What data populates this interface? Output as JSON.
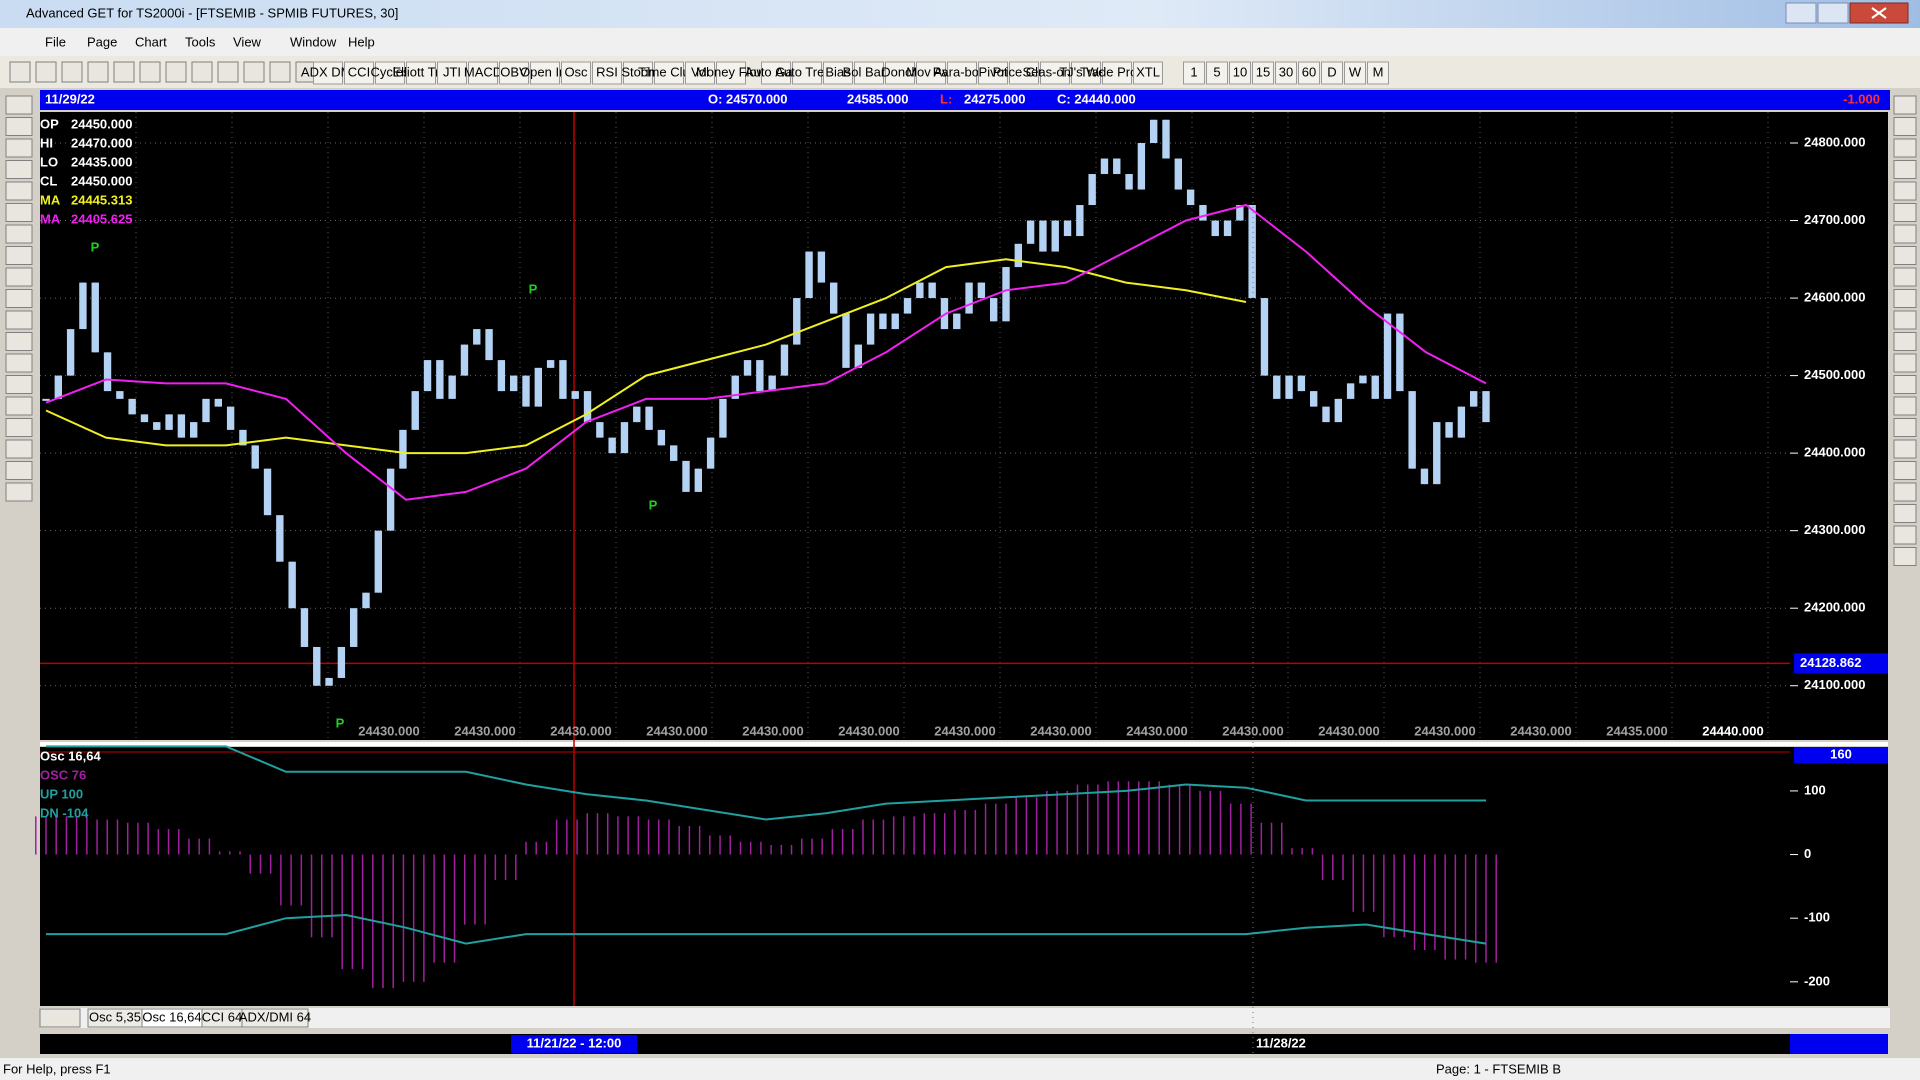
{
  "window": {
    "title": "Advanced GET for TS2000i - [FTSEMIB - SPMIB FUTURES, 30]"
  },
  "menu": [
    "File",
    "Page",
    "Chart",
    "Tools",
    "View",
    "Window",
    "Help"
  ],
  "toolbar": {
    "studies": [
      "ADX DMI",
      "CCI",
      "Cycles",
      "Elliott Trig",
      "JTI",
      "MACD",
      "OBV",
      "Open Int",
      "Osc",
      "RSI",
      "Stoch",
      "Time Clust",
      "Vol",
      "Money Flow"
    ],
    "tools": [
      "Auto Gann",
      "Auto Trend",
      "Bias",
      "Bol Band",
      "Donch",
      "Mov Ave",
      "Para-bolic",
      "Pivot",
      "Price Clust",
      "Seas-onals",
      "TJ's Web",
      "Trade Profile",
      "XTL"
    ],
    "timeframes": [
      "1",
      "5",
      "10",
      "15",
      "30",
      "60",
      "D",
      "W",
      "M"
    ]
  },
  "chart_header": {
    "date": "11/29/22",
    "open": "O: 24570.000",
    "high": "24585.000",
    "low_label": "L:",
    "low": "24275.000",
    "close": "C: 24440.000",
    "change": "-1.000"
  },
  "price_panel": {
    "legend": [
      {
        "label": "OP",
        "value": "24450.000"
      },
      {
        "label": "HI",
        "value": "24470.000"
      },
      {
        "label": "LO",
        "value": "24435.000"
      },
      {
        "label": "CL",
        "value": "24450.000"
      },
      {
        "label": "MA",
        "value": "24445.313"
      },
      {
        "label": "MA",
        "value": "24405.625"
      }
    ],
    "ylim": [
      24030,
      24840
    ],
    "yticks": [
      {
        "value": 24800,
        "label": "24800.000"
      },
      {
        "value": 24700,
        "label": "24700.000"
      },
      {
        "value": 24600,
        "label": "24600.000"
      },
      {
        "value": 24500,
        "label": "24500.000"
      },
      {
        "value": 24400,
        "label": "24400.000"
      },
      {
        "value": 24300,
        "label": "24300.000"
      },
      {
        "value": 24200,
        "label": "24200.000"
      },
      {
        "value": 24100,
        "label": "24100.000"
      }
    ],
    "cursor_price": {
      "value": 24128.862,
      "label": "24128.862"
    },
    "pivot_label": "P",
    "closes": [
      24470,
      24500,
      24560,
      24620,
      24530,
      24480,
      24470,
      24450,
      24440,
      24430,
      24450,
      24420,
      24440,
      24470,
      24460,
      24430,
      24410,
      24380,
      24320,
      24260,
      24200,
      24150,
      24100,
      24110,
      24150,
      24200,
      24220,
      24300,
      24380,
      24430,
      24480,
      24520,
      24470,
      24500,
      24540,
      24560,
      24520,
      24480,
      24500,
      24460,
      24510,
      24520,
      24470,
      24480,
      24440,
      24420,
      24400,
      24440,
      24460,
      24430,
      24410,
      24390,
      24350,
      24380,
      24420,
      24470,
      24500,
      24520,
      24480,
      24500,
      24540,
      24600,
      24660,
      24620,
      24580,
      24510,
      24540,
      24580,
      24560,
      24580,
      24600,
      24620,
      24600,
      24560,
      24580,
      24620,
      24600,
      24570,
      24640,
      24670,
      24700,
      24660,
      24700,
      24680,
      24720,
      24760,
      24780,
      24760,
      24740,
      24800,
      24830,
      24780,
      24740,
      24720,
      24700,
      24680,
      24700,
      24720,
      24600,
      24500,
      24470,
      24500,
      24480,
      24460,
      24440,
      24470,
      24490,
      24500,
      24470,
      24580,
      24480,
      24380,
      24360,
      24440,
      24420,
      24460,
      24480,
      24440
    ],
    "ma_magenta": [
      24465,
      24495,
      24490,
      24490,
      24470,
      24400,
      24340,
      24350,
      24380,
      24440,
      24470,
      24470,
      24480,
      24490,
      24530,
      24580,
      24610,
      24620,
      24660,
      24700,
      24720,
      24660,
      24590,
      24530,
      24490
    ],
    "ma_yellow": [
      24455,
      24420,
      24410,
      24410,
      24420,
      24410,
      24400,
      24400,
      24410,
      24450,
      24500,
      24520,
      24540,
      24570,
      24600,
      24640,
      24650,
      24640,
      24620,
      24610,
      24595,
      null,
      null,
      null,
      null
    ],
    "bottom_labels": [
      "24430.000",
      "24430.000",
      "24430.000",
      "24430.000",
      "24430.000",
      "24430.000",
      "24430.000",
      "24430.000",
      "24430.000",
      "24430.000",
      "24430.000",
      "24430.000",
      "24430.000",
      "24435.000",
      "24440.000"
    ]
  },
  "osc_panel": {
    "legend": [
      "Osc 16,64",
      "OSC 76",
      "UP  100",
      "DN  -104"
    ],
    "ylim": [
      -238,
      169
    ],
    "yticks": [
      100,
      0,
      -100,
      -200
    ],
    "top_value": "160",
    "histogram": [
      60,
      60,
      55,
      50,
      40,
      25,
      5,
      -30,
      -80,
      -130,
      -180,
      -210,
      -200,
      -170,
      -110,
      -40,
      20,
      55,
      65,
      60,
      55,
      45,
      30,
      20,
      15,
      25,
      40,
      55,
      60,
      65,
      70,
      80,
      90,
      100,
      110,
      115,
      115,
      110,
      100,
      80,
      50,
      10,
      -40,
      -90,
      -130,
      -150,
      -165,
      -170
    ],
    "up_line": [
      170,
      170,
      170,
      170,
      130,
      130,
      130,
      130,
      110,
      95,
      85,
      70,
      55,
      65,
      80,
      85,
      90,
      95,
      100,
      110,
      105,
      85,
      85,
      85,
      85
    ],
    "dn_line": [
      -125,
      -125,
      -125,
      -125,
      -100,
      -95,
      -115,
      -140,
      -125,
      -125,
      -125,
      -125,
      -125,
      -125,
      -125,
      -125,
      -125,
      -125,
      -125,
      -125,
      -125,
      -115,
      -110,
      -125,
      -140
    ]
  },
  "tabs": [
    "Osc 5,35",
    "Osc 16,64",
    "CCI 64",
    "ADX/DMI 64"
  ],
  "time_axis": {
    "cursor_time": "11/21/22 - 12:00",
    "day_label": "11/28/22"
  },
  "status": {
    "help": "For Help, press F1",
    "page": "Page: 1 - FTSEMIB B"
  }
}
